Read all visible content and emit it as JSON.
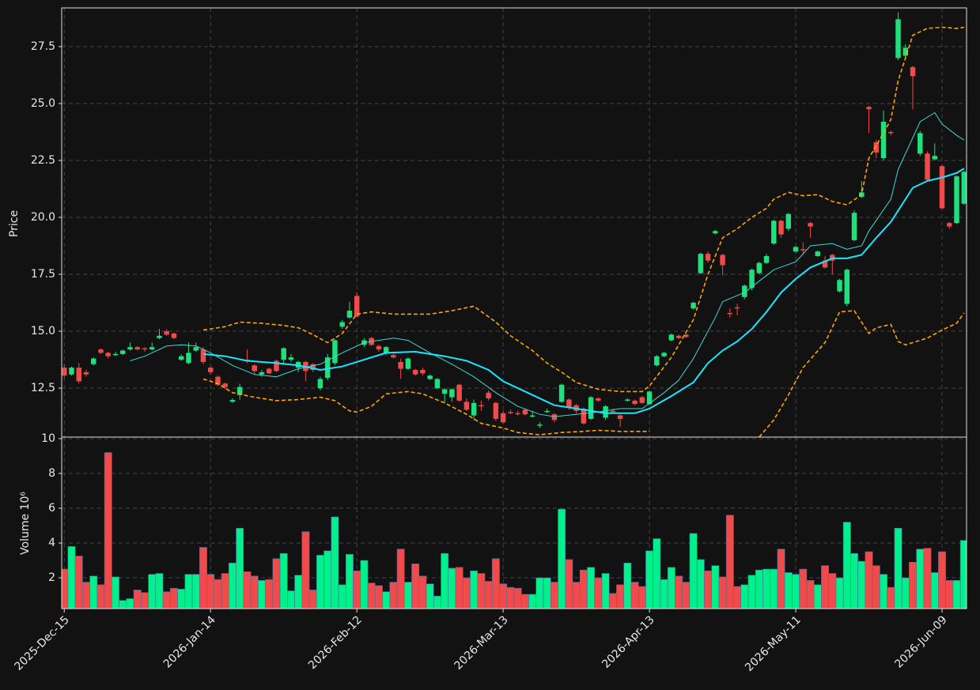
{
  "chart_data": {
    "type": "candlestick",
    "ylabel": "Price",
    "grid": true,
    "up_color": "#1fe07c",
    "down_color": "#f04a4a",
    "xlim": [
      -0.35,
      123.35
    ],
    "xticks": [
      {
        "value": 0,
        "label": "2025-Dec-15"
      },
      {
        "value": 20,
        "label": "2026-Jan-14"
      },
      {
        "value": 40,
        "label": "2026-Feb-12"
      },
      {
        "value": 60,
        "label": "2026-Mar-13"
      },
      {
        "value": 80,
        "label": "2026-Apr-13"
      },
      {
        "value": 100,
        "label": "2026-May-11"
      },
      {
        "value": 120,
        "label": "2026-Jun-09"
      }
    ],
    "ylim": [
      10.35,
      29.2
    ],
    "yticks": [
      12.5,
      {
        "value": 15,
        "label": "15.0"
      },
      17.5,
      {
        "value": 20,
        "label": "20.0"
      },
      22.5,
      {
        "value": 25,
        "label": "25.0"
      },
      27.5
    ],
    "open": [
      13.4,
      13.1,
      13.4,
      13.2,
      13.55,
      14.2,
      14.05,
      13.95,
      14.0,
      14.2,
      14.3,
      14.25,
      14.2,
      14.7,
      15.0,
      14.9,
      13.75,
      13.6,
      14.15,
      14.2,
      13.4,
      13.0,
      12.7,
      11.9,
      12.2,
      13.75,
      13.5,
      13.1,
      13.35,
      13.7,
      13.75,
      13.75,
      13.4,
      13.65,
      13.55,
      12.5,
      12.95,
      13.6,
      15.2,
      15.6,
      16.55,
      14.4,
      14.7,
      14.35,
      14.05,
      13.95,
      13.65,
      13.35,
      13.3,
      13.3,
      12.9,
      12.5,
      12.25,
      12.1,
      12.65,
      11.9,
      11.3,
      11.75,
      12.3,
      11.85,
      11.4,
      11.45,
      11.4,
      11.55,
      11.25,
      10.85,
      11.45,
      11.35,
      11.9,
      12.0,
      11.75,
      11.6,
      11.15,
      12.05,
      11.2,
      11.5,
      11.3,
      11.95,
      11.95,
      12.1,
      11.8,
      13.5,
      13.9,
      14.6,
      14.8,
      14.85,
      16.0,
      17.55,
      18.4,
      19.3,
      18.35,
      15.8,
      16.05,
      16.5,
      16.9,
      17.55,
      18.0,
      18.85,
      19.85,
      19.5,
      18.5,
      18.6,
      19.75,
      18.3,
      18.1,
      18.35,
      16.75,
      16.2,
      19.0,
      20.9,
      24.85,
      23.3,
      22.6,
      23.75,
      27.0,
      27.1,
      26.6,
      22.8,
      22.8,
      22.55,
      22.25,
      19.75,
      19.75,
      20.6
    ],
    "high": [
      13.55,
      13.45,
      13.6,
      13.3,
      13.85,
      14.25,
      14.1,
      14.1,
      14.2,
      14.5,
      14.35,
      14.3,
      14.5,
      15.1,
      15.1,
      14.95,
      14.0,
      14.5,
      14.5,
      14.3,
      13.45,
      13.05,
      12.75,
      12.05,
      12.7,
      14.2,
      13.55,
      13.3,
      13.4,
      13.75,
      14.3,
      14.0,
      13.7,
      13.7,
      13.6,
      13.0,
      14.0,
      14.65,
      15.5,
      16.3,
      16.7,
      14.7,
      14.75,
      14.4,
      14.35,
      14.0,
      13.8,
      13.85,
      13.35,
      13.4,
      13.1,
      12.95,
      12.5,
      12.5,
      12.7,
      12.05,
      12.0,
      11.95,
      12.4,
      11.9,
      11.5,
      11.55,
      11.5,
      11.6,
      11.5,
      11.0,
      11.6,
      11.4,
      12.7,
      12.05,
      11.8,
      11.65,
      12.15,
      12.1,
      11.75,
      11.6,
      11.35,
      12.05,
      12.0,
      12.15,
      12.4,
      13.95,
      14.1,
      14.9,
      14.85,
      14.9,
      16.3,
      18.45,
      18.5,
      19.45,
      18.4,
      16.0,
      16.2,
      17.05,
      17.75,
      18.05,
      18.4,
      19.9,
      19.9,
      20.2,
      18.75,
      18.9,
      19.8,
      18.55,
      18.3,
      18.4,
      17.3,
      17.75,
      20.3,
      21.6,
      24.9,
      23.4,
      24.7,
      23.8,
      29.0,
      27.6,
      26.65,
      23.8,
      22.9,
      23.25,
      22.3,
      19.8,
      21.85,
      22.05
    ],
    "low": [
      12.95,
      13.05,
      12.7,
      13.0,
      13.5,
      14.0,
      13.8,
      13.9,
      13.95,
      14.15,
      14.15,
      14.1,
      14.15,
      14.65,
      14.8,
      14.65,
      13.7,
      13.55,
      14.1,
      13.55,
      13.1,
      12.6,
      12.45,
      11.85,
      12.0,
      13.6,
      13.1,
      13.0,
      13.1,
      13.2,
      13.6,
      13.65,
      13.2,
      12.8,
      13.2,
      12.4,
      12.85,
      13.5,
      15.1,
      15.55,
      15.6,
      14.3,
      14.35,
      14.1,
      13.95,
      13.8,
      12.9,
      13.3,
      13.05,
      13.05,
      12.85,
      12.45,
      11.85,
      11.9,
      11.9,
      11.5,
      11.1,
      11.5,
      11.95,
      11.05,
      10.95,
      11.35,
      11.3,
      11.3,
      11.2,
      10.75,
      11.4,
      11.0,
      11.85,
      11.55,
      11.4,
      10.9,
      11.1,
      11.9,
      11.1,
      11.4,
      10.8,
      11.9,
      11.75,
      11.8,
      11.75,
      13.45,
      13.85,
      14.55,
      14.65,
      14.7,
      15.95,
      17.5,
      18.0,
      19.25,
      17.45,
      15.6,
      15.7,
      16.4,
      16.8,
      17.5,
      17.95,
      18.8,
      19.1,
      19.4,
      18.45,
      18.4,
      19.1,
      18.25,
      17.75,
      17.5,
      16.7,
      16.1,
      18.95,
      20.85,
      23.7,
      22.6,
      22.5,
      23.6,
      26.9,
      27.0,
      24.75,
      22.7,
      21.6,
      22.5,
      20.35,
      19.5,
      19.7,
      20.55
    ],
    "close": [
      13.05,
      13.4,
      12.8,
      13.1,
      13.8,
      14.05,
      13.9,
      14.0,
      14.15,
      14.3,
      14.2,
      14.2,
      14.3,
      14.8,
      14.85,
      14.7,
      13.9,
      14.05,
      14.3,
      13.65,
      13.2,
      12.65,
      12.55,
      11.98,
      12.55,
      13.7,
      13.25,
      13.2,
      13.15,
      13.25,
      14.25,
      13.85,
      13.65,
      13.25,
      13.3,
      12.9,
      13.85,
      14.6,
      15.4,
      15.9,
      15.65,
      14.6,
      14.4,
      14.2,
      14.3,
      13.85,
      13.35,
      13.8,
      13.1,
      13.15,
      13.05,
      12.9,
      12.45,
      12.45,
      11.95,
      11.55,
      11.85,
      11.7,
      12.05,
      11.15,
      11.0,
      11.4,
      11.35,
      11.35,
      11.3,
      10.9,
      11.5,
      11.1,
      12.65,
      11.65,
      11.5,
      10.95,
      12.1,
      11.95,
      11.7,
      11.45,
      11.15,
      12.0,
      11.8,
      11.85,
      12.35,
      13.9,
      14.05,
      14.85,
      14.7,
      14.75,
      16.25,
      18.4,
      18.1,
      19.4,
      17.9,
      15.75,
      16.0,
      17.0,
      17.7,
      18.0,
      18.3,
      19.85,
      19.25,
      20.15,
      18.7,
      18.55,
      19.6,
      18.5,
      17.8,
      18.1,
      17.25,
      17.7,
      20.2,
      21.1,
      24.75,
      22.85,
      24.2,
      23.7,
      28.7,
      27.45,
      26.2,
      23.7,
      21.65,
      22.7,
      20.4,
      19.6,
      21.8,
      22.0
    ],
    "lines": [
      {
        "color": "#3fd8d2",
        "style": "thin",
        "x": [
          9,
          11,
          14,
          16,
          18,
          20,
          23,
          26,
          29,
          32,
          35,
          38,
          41,
          45,
          47,
          50,
          53,
          56,
          59,
          62,
          65,
          67,
          70,
          73,
          76,
          79,
          82,
          84,
          86,
          89,
          90,
          93,
          95,
          97,
          100,
          102,
          105,
          107,
          109,
          110,
          113,
          114,
          117,
          119,
          120,
          122,
          123
        ],
        "values": [
          13.7,
          13.9,
          14.35,
          14.4,
          14.35,
          14.05,
          13.5,
          13.1,
          13.0,
          13.35,
          13.55,
          14.05,
          14.5,
          14.7,
          14.6,
          14.05,
          13.55,
          13.0,
          12.3,
          11.7,
          11.35,
          11.25,
          11.35,
          11.45,
          11.6,
          11.6,
          12.3,
          12.85,
          13.8,
          15.6,
          16.3,
          16.7,
          17.2,
          17.7,
          18.05,
          18.75,
          18.85,
          18.6,
          18.75,
          19.4,
          20.8,
          22.1,
          24.2,
          24.6,
          24.1,
          23.6,
          23.4
        ]
      },
      {
        "color": "#19e6ff",
        "style": "thick",
        "x": [
          19,
          22,
          25,
          29,
          32,
          35,
          38,
          41,
          44,
          48,
          52,
          55,
          58,
          60,
          64,
          67,
          71,
          74,
          78,
          80,
          83,
          86,
          88,
          90,
          92,
          94,
          96,
          98,
          100,
          102,
          105,
          107,
          109,
          111,
          113,
          115,
          116,
          118,
          120,
          122,
          123
        ],
        "values": [
          14.0,
          13.9,
          13.7,
          13.6,
          13.5,
          13.3,
          13.45,
          13.75,
          14.05,
          14.1,
          13.9,
          13.7,
          13.3,
          12.8,
          12.2,
          11.75,
          11.55,
          11.4,
          11.4,
          11.6,
          12.15,
          12.75,
          13.6,
          14.15,
          14.55,
          15.1,
          15.85,
          16.7,
          17.3,
          17.8,
          18.2,
          18.2,
          18.35,
          19.1,
          19.8,
          20.8,
          21.3,
          21.6,
          21.75,
          21.95,
          22.15
        ]
      },
      {
        "color": "#ffa500",
        "style": "dashed",
        "x": [
          19,
          22,
          24,
          27,
          30,
          32,
          34,
          36,
          38,
          40,
          42,
          45,
          50,
          53,
          56,
          59,
          61,
          64,
          66,
          68,
          70,
          73,
          76,
          79,
          80,
          83,
          86,
          88,
          90,
          92,
          94,
          96,
          97,
          99,
          101,
          103,
          105,
          107,
          109,
          110,
          112,
          113,
          114,
          116,
          118,
          120,
          122,
          123
        ],
        "values": [
          15.05,
          15.2,
          15.4,
          15.35,
          15.25,
          15.15,
          14.85,
          14.5,
          14.9,
          15.75,
          15.85,
          15.75,
          15.75,
          15.9,
          16.1,
          15.4,
          14.8,
          14.15,
          13.6,
          13.2,
          12.75,
          12.45,
          12.35,
          12.35,
          12.6,
          13.85,
          15.5,
          17.5,
          19.1,
          19.5,
          20.0,
          20.4,
          20.8,
          21.1,
          20.95,
          21.0,
          20.7,
          20.55,
          21.0,
          22.6,
          23.7,
          24.3,
          26.0,
          28.0,
          28.3,
          28.35,
          28.3,
          28.35
        ]
      },
      {
        "color": "#ffa500",
        "style": "dashed",
        "x": [
          19,
          21,
          23,
          26,
          29,
          32,
          35,
          37,
          39,
          40,
          42,
          44,
          47,
          49,
          52,
          55,
          57,
          60,
          62,
          65,
          68,
          71,
          73,
          76,
          80,
          88,
          95,
          97,
          99,
          101,
          104,
          106,
          108,
          110,
          111,
          113,
          114,
          115,
          118,
          120,
          122,
          123
        ],
        "values": [
          12.9,
          12.7,
          12.3,
          12.1,
          11.95,
          12.0,
          12.1,
          11.95,
          11.5,
          11.45,
          11.7,
          12.25,
          12.35,
          12.25,
          11.85,
          11.35,
          10.95,
          10.75,
          10.55,
          10.45,
          10.55,
          10.6,
          10.65,
          10.6,
          10.6,
          null,
          10.35,
          11.1,
          12.2,
          13.4,
          14.5,
          15.85,
          15.9,
          14.9,
          15.15,
          15.3,
          14.55,
          14.4,
          14.7,
          15.05,
          15.35,
          15.8
        ]
      }
    ],
    "volume": {
      "ylabel": "Volume  10⁶",
      "ylim": [
        0.23,
        10.09
      ],
      "yticks": [
        2,
        4,
        6,
        8,
        10
      ],
      "values": [
        2.5,
        3.8,
        3.25,
        1.75,
        2.1,
        1.6,
        9.2,
        2.05,
        0.7,
        0.8,
        1.3,
        1.15,
        2.2,
        2.25,
        1.2,
        1.4,
        1.35,
        2.2,
        2.2,
        3.75,
        2.2,
        1.9,
        2.25,
        2.85,
        4.85,
        2.35,
        2.1,
        1.85,
        1.9,
        3.1,
        3.4,
        1.25,
        2.15,
        4.65,
        1.3,
        3.3,
        3.55,
        5.5,
        1.6,
        3.35,
        2.4,
        3.0,
        1.7,
        1.55,
        1.2,
        1.75,
        3.65,
        1.75,
        2.8,
        2.1,
        1.65,
        0.95,
        3.4,
        2.55,
        2.6,
        2.0,
        2.4,
        2.25,
        1.8,
        3.1,
        1.65,
        1.45,
        1.4,
        1.05,
        1.05,
        2.0,
        2.0,
        1.75,
        5.95,
        3.05,
        1.75,
        2.45,
        2.6,
        2.0,
        2.25,
        1.1,
        1.6,
        2.85,
        1.75,
        1.5,
        3.55,
        4.25,
        1.9,
        2.6,
        2.1,
        1.75,
        4.55,
        3.05,
        2.4,
        2.7,
        2.05,
        5.6,
        1.5,
        1.6,
        2.15,
        2.45,
        2.5,
        2.5,
        3.65,
        2.3,
        2.2,
        2.5,
        1.85,
        1.6,
        2.7,
        2.25,
        2.0,
        5.2,
        3.4,
        2.95,
        3.5,
        2.7,
        2.2,
        1.45,
        4.85,
        2.0,
        2.9,
        3.65,
        3.7,
        2.3,
        3.5,
        1.85,
        1.85,
        4.15
      ]
    }
  }
}
